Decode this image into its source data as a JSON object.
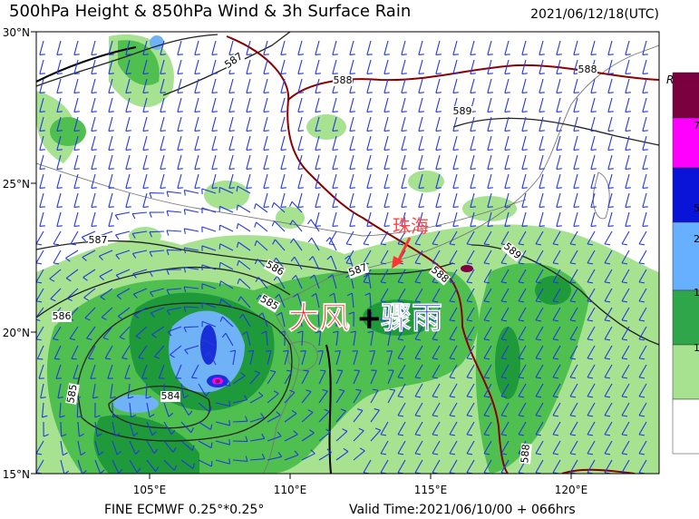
{
  "header": {
    "title": "500hPa Height & 850hPa Wind & 3h Surface Rain",
    "time": "2021/06/12/18(UTC)"
  },
  "axes": {
    "lat_labels": [
      "30°N",
      "25°N",
      "20°N",
      "15°N"
    ],
    "lon_labels": [
      "105°E",
      "110°E",
      "115°E",
      "120°E"
    ]
  },
  "contour_labels": [
    "587",
    "588",
    "588",
    "589",
    "587",
    "586",
    "587",
    "588",
    "589",
    "586",
    "585",
    "584",
    "585",
    "588"
  ],
  "annotations": {
    "city": "珠海",
    "wind": "大风",
    "plus": "+",
    "rain": "骤雨"
  },
  "legend": {
    "title": "Rain",
    "labels": [
      "7",
      "5",
      "2",
      "1",
      "1"
    ]
  },
  "footer": {
    "model": "FINE ECMWF 0.25°*0.25°",
    "valid": "Valid Time:2021/06/10/00 + 066hrs"
  }
}
